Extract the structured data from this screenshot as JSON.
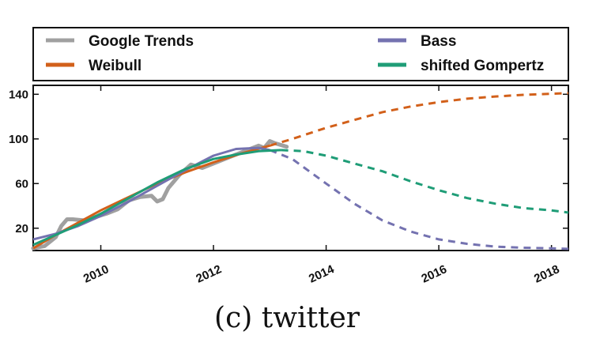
{
  "chart_data": {
    "type": "line",
    "caption": "(c) twitter",
    "xlim": [
      2008.8,
      2018.3
    ],
    "ylim": [
      0,
      148
    ],
    "x_ticks": [
      2010,
      2012,
      2014,
      2016,
      2018
    ],
    "y_ticks": [
      20,
      60,
      100,
      140
    ],
    "legend_position": "top",
    "colors": {
      "google_trends": "#a0a0a0",
      "weibull": "#d2601a",
      "bass": "#7472b0",
      "gompertz": "#1f9d77"
    },
    "series": [
      {
        "name": "Google Trends",
        "style": "solid",
        "x": [
          2008.8,
          2009.0,
          2009.2,
          2009.3,
          2009.4,
          2009.5,
          2009.7,
          2009.9,
          2010.1,
          2010.3,
          2010.5,
          2010.7,
          2010.9,
          2011.0,
          2011.1,
          2011.2,
          2011.4,
          2011.6,
          2011.8,
          2012.0,
          2012.2,
          2012.4,
          2012.6,
          2012.8,
          2012.9,
          2013.0,
          2013.1,
          2013.3
        ],
        "y": [
          2,
          4,
          12,
          22,
          28,
          28,
          27,
          30,
          33,
          37,
          45,
          48,
          49,
          44,
          46,
          56,
          68,
          77,
          74,
          78,
          82,
          86,
          90,
          94,
          92,
          98,
          96,
          93
        ]
      },
      {
        "name": "Weibull",
        "style": "solid-then-dashed",
        "x": [
          2008.8,
          2009.2,
          2009.6,
          2010.0,
          2010.5,
          2011.0,
          2011.5,
          2012.0,
          2012.5,
          2013.0,
          2013.4,
          2014.0,
          2014.5,
          2015.0,
          2015.5,
          2016.0,
          2016.5,
          2017.0,
          2017.5,
          2018.0,
          2018.3
        ],
        "y": [
          2,
          14,
          25,
          36,
          48,
          60,
          70,
          79,
          87,
          94,
          100,
          110,
          117,
          124,
          129,
          133,
          136,
          138,
          139.5,
          140.5,
          141
        ]
      },
      {
        "name": "Bass",
        "style": "solid-then-dashed",
        "x": [
          2008.8,
          2009.2,
          2009.6,
          2010.0,
          2010.5,
          2011.0,
          2011.5,
          2012.0,
          2012.4,
          2012.8,
          2013.0,
          2013.4,
          2014.0,
          2014.5,
          2015.0,
          2015.5,
          2016.0,
          2016.5,
          2017.0,
          2017.5,
          2018.0,
          2018.3
        ],
        "y": [
          10,
          15,
          22,
          31,
          44,
          58,
          72,
          85,
          91,
          92,
          90,
          82,
          60,
          42,
          27,
          17,
          10,
          6,
          3.5,
          2.5,
          2,
          1.5
        ]
      },
      {
        "name": "shifted Gompertz",
        "style": "solid-then-dashed",
        "x": [
          2008.8,
          2009.2,
          2009.6,
          2010.0,
          2010.5,
          2011.0,
          2011.5,
          2012.0,
          2012.4,
          2012.8,
          2013.2,
          2013.6,
          2014.0,
          2014.5,
          2015.0,
          2015.5,
          2016.0,
          2016.5,
          2017.0,
          2017.5,
          2018.0,
          2018.3
        ],
        "y": [
          5,
          14,
          23,
          33,
          47,
          61,
          73,
          82,
          86,
          89,
          90,
          89,
          85,
          78,
          71,
          62,
          54,
          47,
          42,
          38,
          36,
          34
        ]
      }
    ],
    "forecast_start": 2013.3
  }
}
